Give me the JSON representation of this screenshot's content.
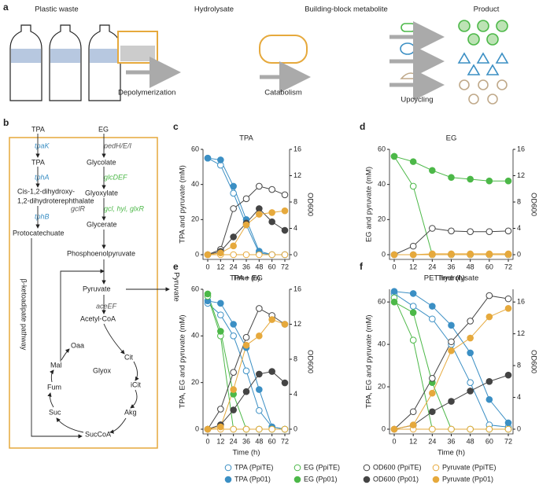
{
  "panel_a": {
    "label": "a",
    "steps": [
      "Plastic waste",
      "Hydrolysate",
      "Building-block metabolite",
      "Product"
    ],
    "processes": [
      "Depolymerization",
      "Catabolism",
      "Upcycling"
    ]
  },
  "pathway": {
    "label": "b",
    "side_label": "Pyruvate",
    "loop_label": "β-ketoadipate pathway",
    "nodes": [
      "TPA",
      "TPA",
      "Cis-1,2-dihydroxy-",
      "1,2-dihydroterephthalate",
      "Protocatechuate",
      "EG",
      "Glycolate",
      "Glyoxylate",
      "Glycerate",
      "Phosphoenolpyruvate",
      "Pyruvate",
      "Acetyl-CoA",
      "Oaa",
      "Cit",
      "iCit",
      "Akg",
      "SucCoA",
      "Suc",
      "Fum",
      "Mal",
      "Glyox"
    ],
    "genes": [
      "tpaK",
      "tphA",
      "tphB",
      "pedH/E/I",
      "glcDEF",
      "gclR",
      "gcl, hyi, glxR",
      "aceEF"
    ]
  },
  "chart_data": [
    {
      "type": "line",
      "panel_label": "c",
      "title": "TPA",
      "x_label": "Time (h)",
      "y_label": "TPA and pyruvate (mM)",
      "y2_label": "OD600",
      "x": [
        0,
        12,
        24,
        36,
        48,
        60,
        72
      ],
      "xlim": [
        0,
        72
      ],
      "xticks": [
        0,
        12,
        24,
        36,
        48,
        60,
        72
      ],
      "ylim": [
        0,
        60
      ],
      "yticks": [
        0,
        20,
        40,
        60
      ],
      "y2lim": [
        0,
        16
      ],
      "y2ticks": [
        0,
        4,
        8,
        12,
        16
      ],
      "series": [
        {
          "name": "TPA (PpiTE)",
          "color": "#3b8fc4",
          "marker": "open",
          "values": [
            55,
            51,
            35,
            17,
            1,
            0,
            0
          ]
        },
        {
          "name": "TPA (Pp01)",
          "color": "#3b8fc4",
          "marker": "filled",
          "values": [
            55,
            54,
            39,
            20,
            2,
            0,
            0
          ]
        },
        {
          "name": "OD600 (PpiTE)",
          "color": "#444444",
          "marker": "open",
          "axis": "y2",
          "values": [
            0,
            0.8,
            7,
            8.5,
            10.4,
            9.9,
            9.1
          ]
        },
        {
          "name": "OD600 (Pp01)",
          "color": "#444444",
          "marker": "filled",
          "axis": "y2",
          "values": [
            0,
            0.5,
            2.7,
            4.8,
            7,
            5,
            3.7
          ]
        },
        {
          "name": "Pyruvate (PpiTE)",
          "color": "#e6a93c",
          "marker": "open",
          "values": [
            0,
            0,
            0,
            0,
            0,
            0,
            0
          ]
        },
        {
          "name": "Pyruvate (Pp01)",
          "color": "#e6a93c",
          "marker": "filled",
          "values": [
            0,
            1,
            5,
            17,
            23,
            24,
            25
          ]
        }
      ]
    },
    {
      "type": "line",
      "panel_label": "d",
      "title": "EG",
      "x_label": "Time (h)",
      "y_label": "EG and pyruvate (mM)",
      "y2_label": "OD600",
      "x": [
        0,
        12,
        24,
        36,
        48,
        60,
        72
      ],
      "xlim": [
        0,
        72
      ],
      "xticks": [
        0,
        12,
        24,
        36,
        48,
        60,
        72
      ],
      "ylim": [
        0,
        60
      ],
      "yticks": [
        0,
        20,
        40,
        60
      ],
      "y2lim": [
        0,
        16
      ],
      "y2ticks": [
        0,
        4,
        8,
        12,
        16
      ],
      "series": [
        {
          "name": "EG (PpiTE)",
          "color": "#4cb848",
          "marker": "open",
          "values": [
            56,
            39,
            0,
            0,
            0,
            0,
            0
          ]
        },
        {
          "name": "EG (Pp01)",
          "color": "#4cb848",
          "marker": "filled",
          "values": [
            56,
            53,
            48,
            44,
            43,
            42,
            42
          ]
        },
        {
          "name": "OD600 (PpiTE)",
          "color": "#444444",
          "marker": "open",
          "axis": "y2",
          "values": [
            0,
            1.3,
            4,
            3.6,
            3.5,
            3.5,
            3.6
          ]
        },
        {
          "name": "OD600 (Pp01)",
          "color": "#444444",
          "marker": "filled",
          "axis": "y2",
          "values": [
            0,
            0,
            0,
            0,
            0,
            0,
            0
          ]
        },
        {
          "name": "Pyruvate (PpiTE)",
          "color": "#e6a93c",
          "marker": "open",
          "values": [
            0,
            0,
            0,
            0,
            0,
            0,
            0
          ]
        },
        {
          "name": "Pyruvate (Pp01)",
          "color": "#e6a93c",
          "marker": "filled",
          "values": [
            0,
            0,
            0.5,
            0.5,
            0.5,
            0.5,
            0.5
          ]
        }
      ]
    },
    {
      "type": "line",
      "panel_label": "e",
      "title": "TPA + EG",
      "x_label": "Time (h)",
      "y_label": "TPA, EG and pyruvate (mM)",
      "y2_label": "OD600",
      "x": [
        0,
        12,
        24,
        36,
        48,
        60,
        72
      ],
      "xlim": [
        0,
        72
      ],
      "xticks": [
        0,
        12,
        24,
        36,
        48,
        60,
        72
      ],
      "ylim": [
        0,
        60
      ],
      "yticks": [
        0,
        20,
        40,
        60
      ],
      "y2lim": [
        0,
        16
      ],
      "y2ticks": [
        0,
        4,
        8,
        12,
        16
      ],
      "series": [
        {
          "name": "TPA (PpiTE)",
          "color": "#3b8fc4",
          "marker": "open",
          "values": [
            54,
            49,
            40,
            25,
            8,
            1,
            0
          ]
        },
        {
          "name": "TPA (Pp01)",
          "color": "#3b8fc4",
          "marker": "filled",
          "values": [
            55,
            54,
            45,
            35,
            17,
            1,
            0
          ]
        },
        {
          "name": "EG (PpiTE)",
          "color": "#4cb848",
          "marker": "open",
          "values": [
            57,
            40,
            0,
            0,
            0,
            0,
            0
          ]
        },
        {
          "name": "EG (Pp01)",
          "color": "#4cb848",
          "marker": "filled",
          "values": [
            58,
            42,
            15,
            0,
            0,
            0,
            0
          ]
        },
        {
          "name": "OD600 (PpiTE)",
          "color": "#444444",
          "marker": "open",
          "axis": "y2",
          "values": [
            0,
            2.3,
            6.5,
            10.5,
            13.8,
            13,
            12
          ]
        },
        {
          "name": "OD600 (Pp01)",
          "color": "#444444",
          "marker": "filled",
          "axis": "y2",
          "values": [
            0,
            0.5,
            2.2,
            4.3,
            6.3,
            6.6,
            5.3
          ]
        },
        {
          "name": "Pyruvate (PpiTE)",
          "color": "#e6a93c",
          "marker": "open",
          "values": [
            0,
            0,
            0,
            0,
            0,
            0,
            0
          ]
        },
        {
          "name": "Pyruvate (Pp01)",
          "color": "#e6a93c",
          "marker": "filled",
          "values": [
            0,
            1,
            17,
            36,
            40,
            47,
            45
          ]
        }
      ]
    },
    {
      "type": "line",
      "panel_label": "f",
      "title": "PET hydrolysate",
      "x_label": "Time (h)",
      "y_label": "TPA, EG and pyruvate (mM)",
      "y2_label": "OD600",
      "x": [
        0,
        12,
        24,
        36,
        48,
        60,
        72
      ],
      "xlim": [
        0,
        72
      ],
      "xticks": [
        0,
        12,
        24,
        36,
        48,
        60,
        72
      ],
      "ylim": [
        0,
        66
      ],
      "yticks": [
        0,
        20,
        40,
        60
      ],
      "y2lim": [
        0,
        17.6
      ],
      "y2ticks": [
        0,
        4,
        8,
        12,
        16
      ],
      "series": [
        {
          "name": "TPA (PpiTE)",
          "color": "#3b8fc4",
          "marker": "open",
          "values": [
            64,
            58,
            52,
            40,
            22,
            2,
            1
          ]
        },
        {
          "name": "TPA (Pp01)",
          "color": "#3b8fc4",
          "marker": "filled",
          "values": [
            65,
            64,
            58,
            49,
            36,
            14,
            3
          ]
        },
        {
          "name": "EG (PpiTE)",
          "color": "#4cb848",
          "marker": "open",
          "values": [
            62,
            42,
            0,
            0,
            0,
            0,
            0
          ]
        },
        {
          "name": "EG (Pp01)",
          "color": "#4cb848",
          "marker": "filled",
          "values": [
            60,
            55,
            22,
            0,
            0,
            0,
            0
          ]
        },
        {
          "name": "OD600 (PpiTE)",
          "color": "#444444",
          "marker": "open",
          "axis": "y2",
          "values": [
            0,
            2.2,
            6.4,
            11,
            13.6,
            16.8,
            16.4
          ]
        },
        {
          "name": "OD600 (Pp01)",
          "color": "#444444",
          "marker": "filled",
          "axis": "y2",
          "values": [
            0,
            0.5,
            2.2,
            3.5,
            4.8,
            6,
            6.8
          ]
        },
        {
          "name": "Pyruvate (PpiTE)",
          "color": "#e6a93c",
          "marker": "open",
          "values": [
            0,
            0,
            0,
            0,
            0,
            0,
            0
          ]
        },
        {
          "name": "Pyruvate (Pp01)",
          "color": "#e6a93c",
          "marker": "filled",
          "values": [
            0,
            2,
            17,
            37,
            43,
            53,
            57
          ]
        }
      ]
    }
  ]
}
